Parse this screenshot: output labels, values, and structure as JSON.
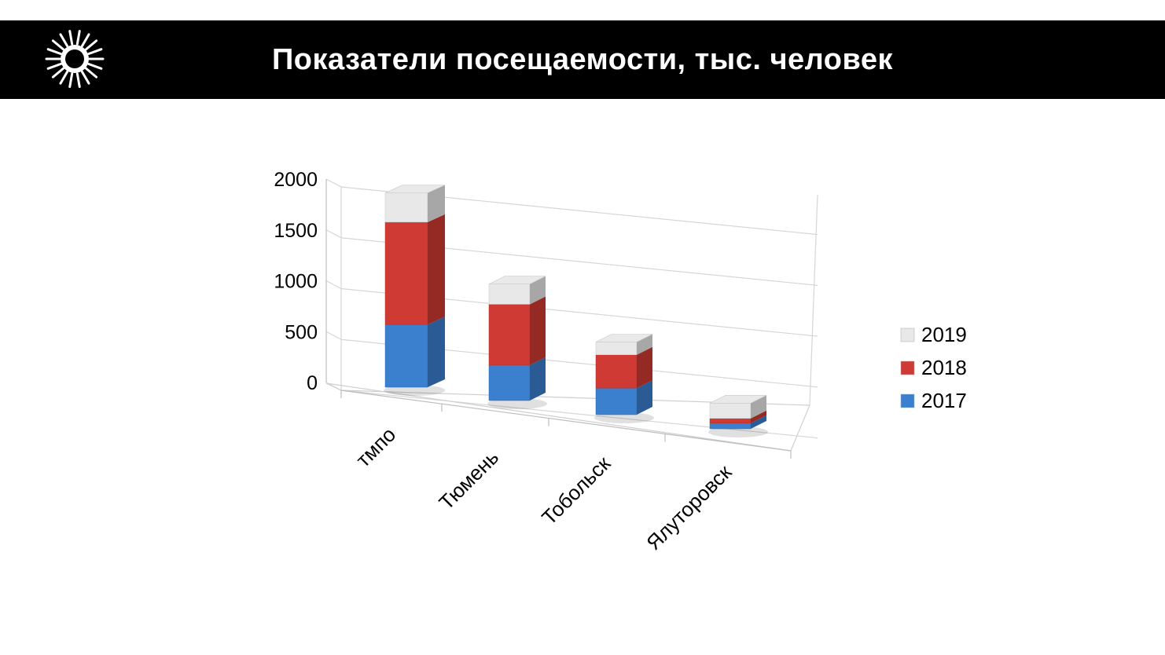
{
  "header": {
    "title": "Показатели посещаемости, тыс. человек"
  },
  "colors": {
    "header_bg": "#000000",
    "series_2017": "#3b7fcf",
    "series_2018": "#cf3b34",
    "series_2019": "#e8e8e8"
  },
  "icons": {
    "logo": "sunburst-m-logo"
  },
  "chart_data": {
    "type": "bar",
    "stacked": true,
    "three_d": true,
    "title": "",
    "xlabel": "",
    "ylabel": "",
    "ylim": [
      0,
      2000
    ],
    "yticks": [
      "0",
      "500",
      "1000",
      "1500",
      "2000"
    ],
    "categories": [
      "тмпо",
      "Тюмень",
      "Тобольск",
      "Ялуторовск"
    ],
    "series": [
      {
        "name": "2017",
        "values": [
          600,
          350,
          270,
          60
        ]
      },
      {
        "name": "2018",
        "values": [
          980,
          600,
          340,
          50
        ]
      },
      {
        "name": "2019",
        "values": [
          280,
          200,
          130,
          160
        ]
      }
    ],
    "legend": "right",
    "grid": true
  }
}
